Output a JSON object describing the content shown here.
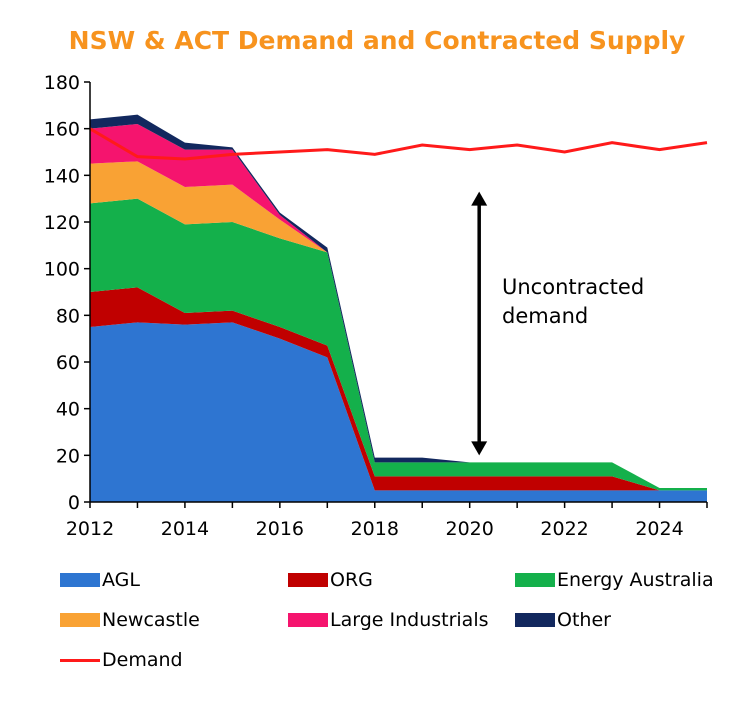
{
  "chart_data": {
    "type": "area",
    "title": "NSW & ACT Demand and Contracted Supply",
    "title_color": "#F7931E",
    "x": [
      2012,
      2013,
      2014,
      2015,
      2016,
      2017,
      2018,
      2019,
      2020,
      2021,
      2022,
      2023,
      2024,
      2025
    ],
    "xticks": [
      "2012",
      "2014",
      "2016",
      "2018",
      "2020",
      "2022",
      "2024"
    ],
    "yticks": [
      "0",
      "20",
      "40",
      "60",
      "80",
      "100",
      "120",
      "140",
      "160",
      "180"
    ],
    "ylim": [
      0,
      180
    ],
    "xlim": [
      2012,
      2025
    ],
    "stacked": true,
    "series": [
      {
        "name": "AGL",
        "color": "#2E75D1",
        "values": [
          75,
          77,
          76,
          77,
          70,
          62,
          5,
          5,
          5,
          5,
          5,
          5,
          5,
          5
        ]
      },
      {
        "name": "ORG",
        "color": "#C00000",
        "values": [
          15,
          15,
          5,
          5,
          5,
          5,
          6,
          6,
          6,
          6,
          6,
          6,
          0,
          0
        ]
      },
      {
        "name": "Energy Australia",
        "color": "#14B04B",
        "values": [
          38,
          38,
          38,
          38,
          38,
          40,
          6,
          6,
          6,
          6,
          6,
          6,
          1,
          1
        ]
      },
      {
        "name": "Newcastle",
        "color": "#F9A234",
        "values": [
          17,
          16,
          16,
          16,
          8,
          0,
          0,
          0,
          0,
          0,
          0,
          0,
          0,
          0
        ]
      },
      {
        "name": "Large Industrials",
        "color": "#F5146E",
        "values": [
          15,
          16,
          16,
          15,
          2,
          0,
          0,
          0,
          0,
          0,
          0,
          0,
          0,
          0
        ]
      },
      {
        "name": "Other",
        "color": "#12285E",
        "values": [
          4,
          4,
          3,
          1,
          1,
          2,
          2,
          2,
          0,
          0,
          0,
          0,
          0,
          0
        ]
      }
    ],
    "line_series": {
      "name": "Demand",
      "color": "#FF1A1A",
      "values": [
        160,
        148,
        147,
        149,
        150,
        151,
        149,
        153,
        151,
        153,
        150,
        154,
        151,
        154
      ]
    },
    "annotation": {
      "lines": [
        "Uncontracted",
        "demand"
      ],
      "arrow_from": 20,
      "arrow_to": 133,
      "arrow_x": 2020.2
    },
    "grid": false,
    "legend_position": "bottom"
  }
}
